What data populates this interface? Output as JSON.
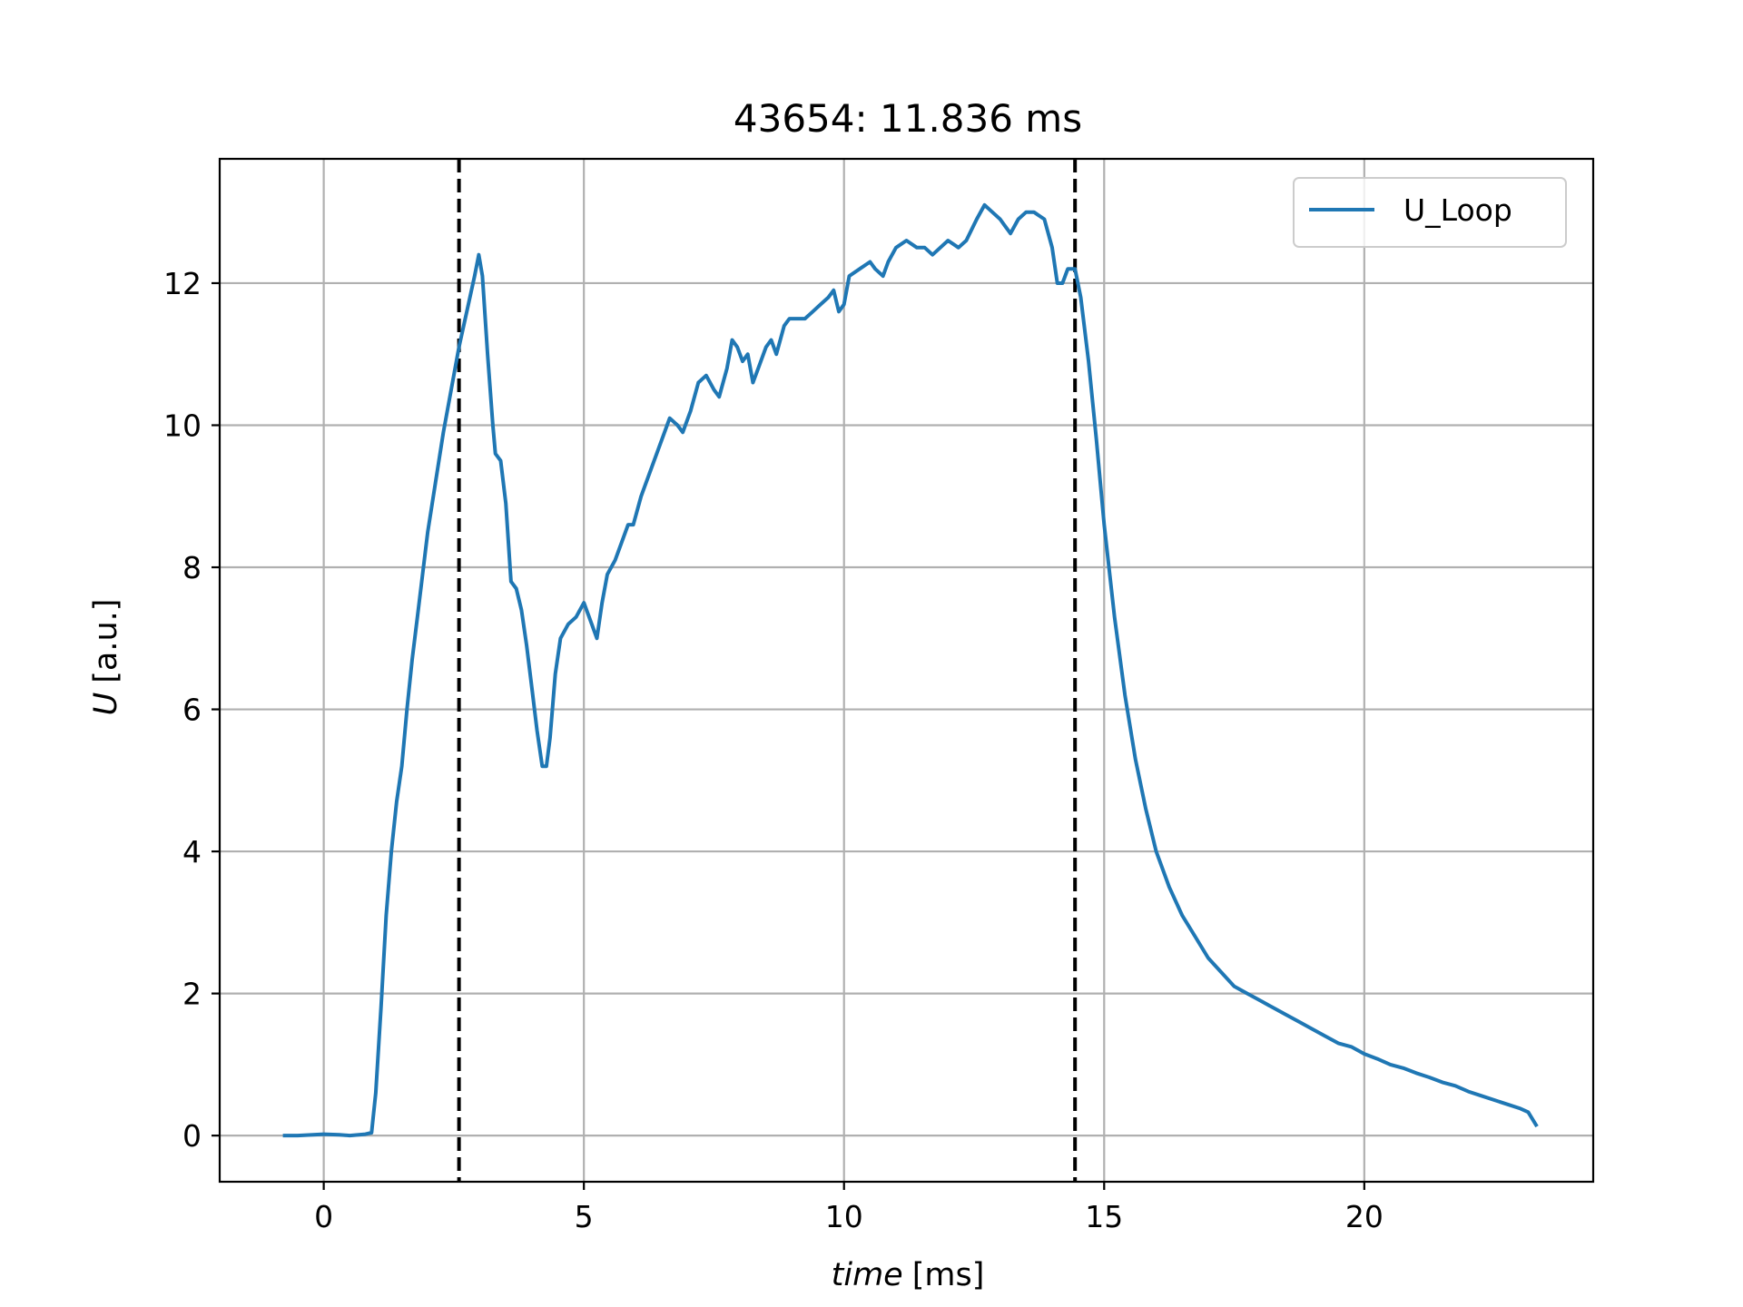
{
  "chart_data": {
    "type": "line",
    "title": "43654: 11.836 ms",
    "xlabel_italic": "time",
    "xlabel_unit": "[ms]",
    "ylabel_italic": "U",
    "ylabel_unit": "[a.u.]",
    "xlim": [
      -2.0,
      24.4
    ],
    "ylim": [
      -0.65,
      13.75
    ],
    "xticks": [
      0,
      5,
      10,
      15,
      20
    ],
    "yticks": [
      0,
      2,
      4,
      6,
      8,
      10,
      12
    ],
    "grid": true,
    "legend_position": "top-right",
    "vlines": [
      {
        "x": 2.6,
        "style": "dashed",
        "color": "#000000"
      },
      {
        "x": 14.44,
        "style": "dashed",
        "color": "#000000"
      }
    ],
    "series": [
      {
        "name": "U_Loop",
        "color": "#1f77b4",
        "points": [
          [
            -0.75,
            0.0
          ],
          [
            -0.5,
            0.0
          ],
          [
            0.0,
            0.02
          ],
          [
            0.3,
            0.01
          ],
          [
            0.5,
            0.0
          ],
          [
            0.8,
            0.02
          ],
          [
            0.92,
            0.04
          ],
          [
            1.0,
            0.6
          ],
          [
            1.1,
            1.8
          ],
          [
            1.2,
            3.1
          ],
          [
            1.3,
            4.0
          ],
          [
            1.4,
            4.7
          ],
          [
            1.5,
            5.2
          ],
          [
            1.6,
            6.0
          ],
          [
            1.7,
            6.7
          ],
          [
            1.8,
            7.3
          ],
          [
            1.9,
            7.9
          ],
          [
            2.0,
            8.5
          ],
          [
            2.15,
            9.2
          ],
          [
            2.3,
            9.9
          ],
          [
            2.45,
            10.5
          ],
          [
            2.6,
            11.1
          ],
          [
            2.75,
            11.6
          ],
          [
            2.9,
            12.1
          ],
          [
            2.98,
            12.4
          ],
          [
            3.05,
            12.1
          ],
          [
            3.15,
            11.0
          ],
          [
            3.25,
            10.0
          ],
          [
            3.3,
            9.6
          ],
          [
            3.4,
            9.5
          ],
          [
            3.5,
            8.9
          ],
          [
            3.6,
            7.8
          ],
          [
            3.7,
            7.7
          ],
          [
            3.8,
            7.4
          ],
          [
            3.9,
            6.9
          ],
          [
            4.0,
            6.3
          ],
          [
            4.1,
            5.7
          ],
          [
            4.2,
            5.2
          ],
          [
            4.28,
            5.2
          ],
          [
            4.35,
            5.6
          ],
          [
            4.45,
            6.5
          ],
          [
            4.55,
            7.0
          ],
          [
            4.7,
            7.2
          ],
          [
            4.85,
            7.3
          ],
          [
            5.0,
            7.5
          ],
          [
            5.15,
            7.2
          ],
          [
            5.25,
            7.0
          ],
          [
            5.35,
            7.5
          ],
          [
            5.45,
            7.9
          ],
          [
            5.6,
            8.1
          ],
          [
            5.75,
            8.4
          ],
          [
            5.85,
            8.6
          ],
          [
            5.95,
            8.6
          ],
          [
            6.1,
            9.0
          ],
          [
            6.25,
            9.3
          ],
          [
            6.4,
            9.6
          ],
          [
            6.55,
            9.9
          ],
          [
            6.65,
            10.1
          ],
          [
            6.8,
            10.0
          ],
          [
            6.9,
            9.9
          ],
          [
            7.05,
            10.2
          ],
          [
            7.2,
            10.6
          ],
          [
            7.35,
            10.7
          ],
          [
            7.5,
            10.5
          ],
          [
            7.6,
            10.4
          ],
          [
            7.75,
            10.8
          ],
          [
            7.85,
            11.2
          ],
          [
            7.95,
            11.1
          ],
          [
            8.05,
            10.9
          ],
          [
            8.15,
            11.0
          ],
          [
            8.25,
            10.6
          ],
          [
            8.35,
            10.8
          ],
          [
            8.5,
            11.1
          ],
          [
            8.6,
            11.2
          ],
          [
            8.7,
            11.0
          ],
          [
            8.85,
            11.4
          ],
          [
            8.95,
            11.5
          ],
          [
            9.1,
            11.5
          ],
          [
            9.25,
            11.5
          ],
          [
            9.4,
            11.6
          ],
          [
            9.55,
            11.7
          ],
          [
            9.7,
            11.8
          ],
          [
            9.8,
            11.9
          ],
          [
            9.9,
            11.6
          ],
          [
            10.0,
            11.7
          ],
          [
            10.1,
            12.1
          ],
          [
            10.3,
            12.2
          ],
          [
            10.5,
            12.3
          ],
          [
            10.6,
            12.2
          ],
          [
            10.75,
            12.1
          ],
          [
            10.85,
            12.3
          ],
          [
            11.0,
            12.5
          ],
          [
            11.2,
            12.6
          ],
          [
            11.4,
            12.5
          ],
          [
            11.55,
            12.5
          ],
          [
            11.7,
            12.4
          ],
          [
            11.85,
            12.5
          ],
          [
            12.0,
            12.6
          ],
          [
            12.2,
            12.5
          ],
          [
            12.35,
            12.6
          ],
          [
            12.55,
            12.9
          ],
          [
            12.7,
            13.1
          ],
          [
            12.85,
            13.0
          ],
          [
            13.0,
            12.9
          ],
          [
            13.1,
            12.8
          ],
          [
            13.2,
            12.7
          ],
          [
            13.35,
            12.9
          ],
          [
            13.5,
            13.0
          ],
          [
            13.65,
            13.0
          ],
          [
            13.85,
            12.9
          ],
          [
            14.0,
            12.5
          ],
          [
            14.1,
            12.0
          ],
          [
            14.2,
            12.0
          ],
          [
            14.3,
            12.2
          ],
          [
            14.44,
            12.2
          ],
          [
            14.55,
            11.8
          ],
          [
            14.7,
            10.9
          ],
          [
            14.85,
            9.8
          ],
          [
            15.0,
            8.6
          ],
          [
            15.2,
            7.3
          ],
          [
            15.4,
            6.2
          ],
          [
            15.6,
            5.3
          ],
          [
            15.8,
            4.6
          ],
          [
            16.0,
            4.0
          ],
          [
            16.25,
            3.5
          ],
          [
            16.5,
            3.1
          ],
          [
            16.75,
            2.8
          ],
          [
            17.0,
            2.5
          ],
          [
            17.25,
            2.3
          ],
          [
            17.5,
            2.1
          ],
          [
            17.75,
            2.0
          ],
          [
            18.0,
            1.9
          ],
          [
            18.25,
            1.8
          ],
          [
            18.5,
            1.7
          ],
          [
            18.75,
            1.6
          ],
          [
            19.0,
            1.5
          ],
          [
            19.25,
            1.4
          ],
          [
            19.5,
            1.3
          ],
          [
            19.75,
            1.25
          ],
          [
            20.0,
            1.15
          ],
          [
            20.25,
            1.08
          ],
          [
            20.5,
            1.0
          ],
          [
            20.75,
            0.95
          ],
          [
            21.0,
            0.88
          ],
          [
            21.25,
            0.82
          ],
          [
            21.5,
            0.75
          ],
          [
            21.75,
            0.7
          ],
          [
            22.0,
            0.62
          ],
          [
            22.25,
            0.56
          ],
          [
            22.5,
            0.5
          ],
          [
            22.75,
            0.44
          ],
          [
            23.0,
            0.38
          ],
          [
            23.15,
            0.33
          ],
          [
            23.3,
            0.15
          ]
        ]
      }
    ]
  }
}
